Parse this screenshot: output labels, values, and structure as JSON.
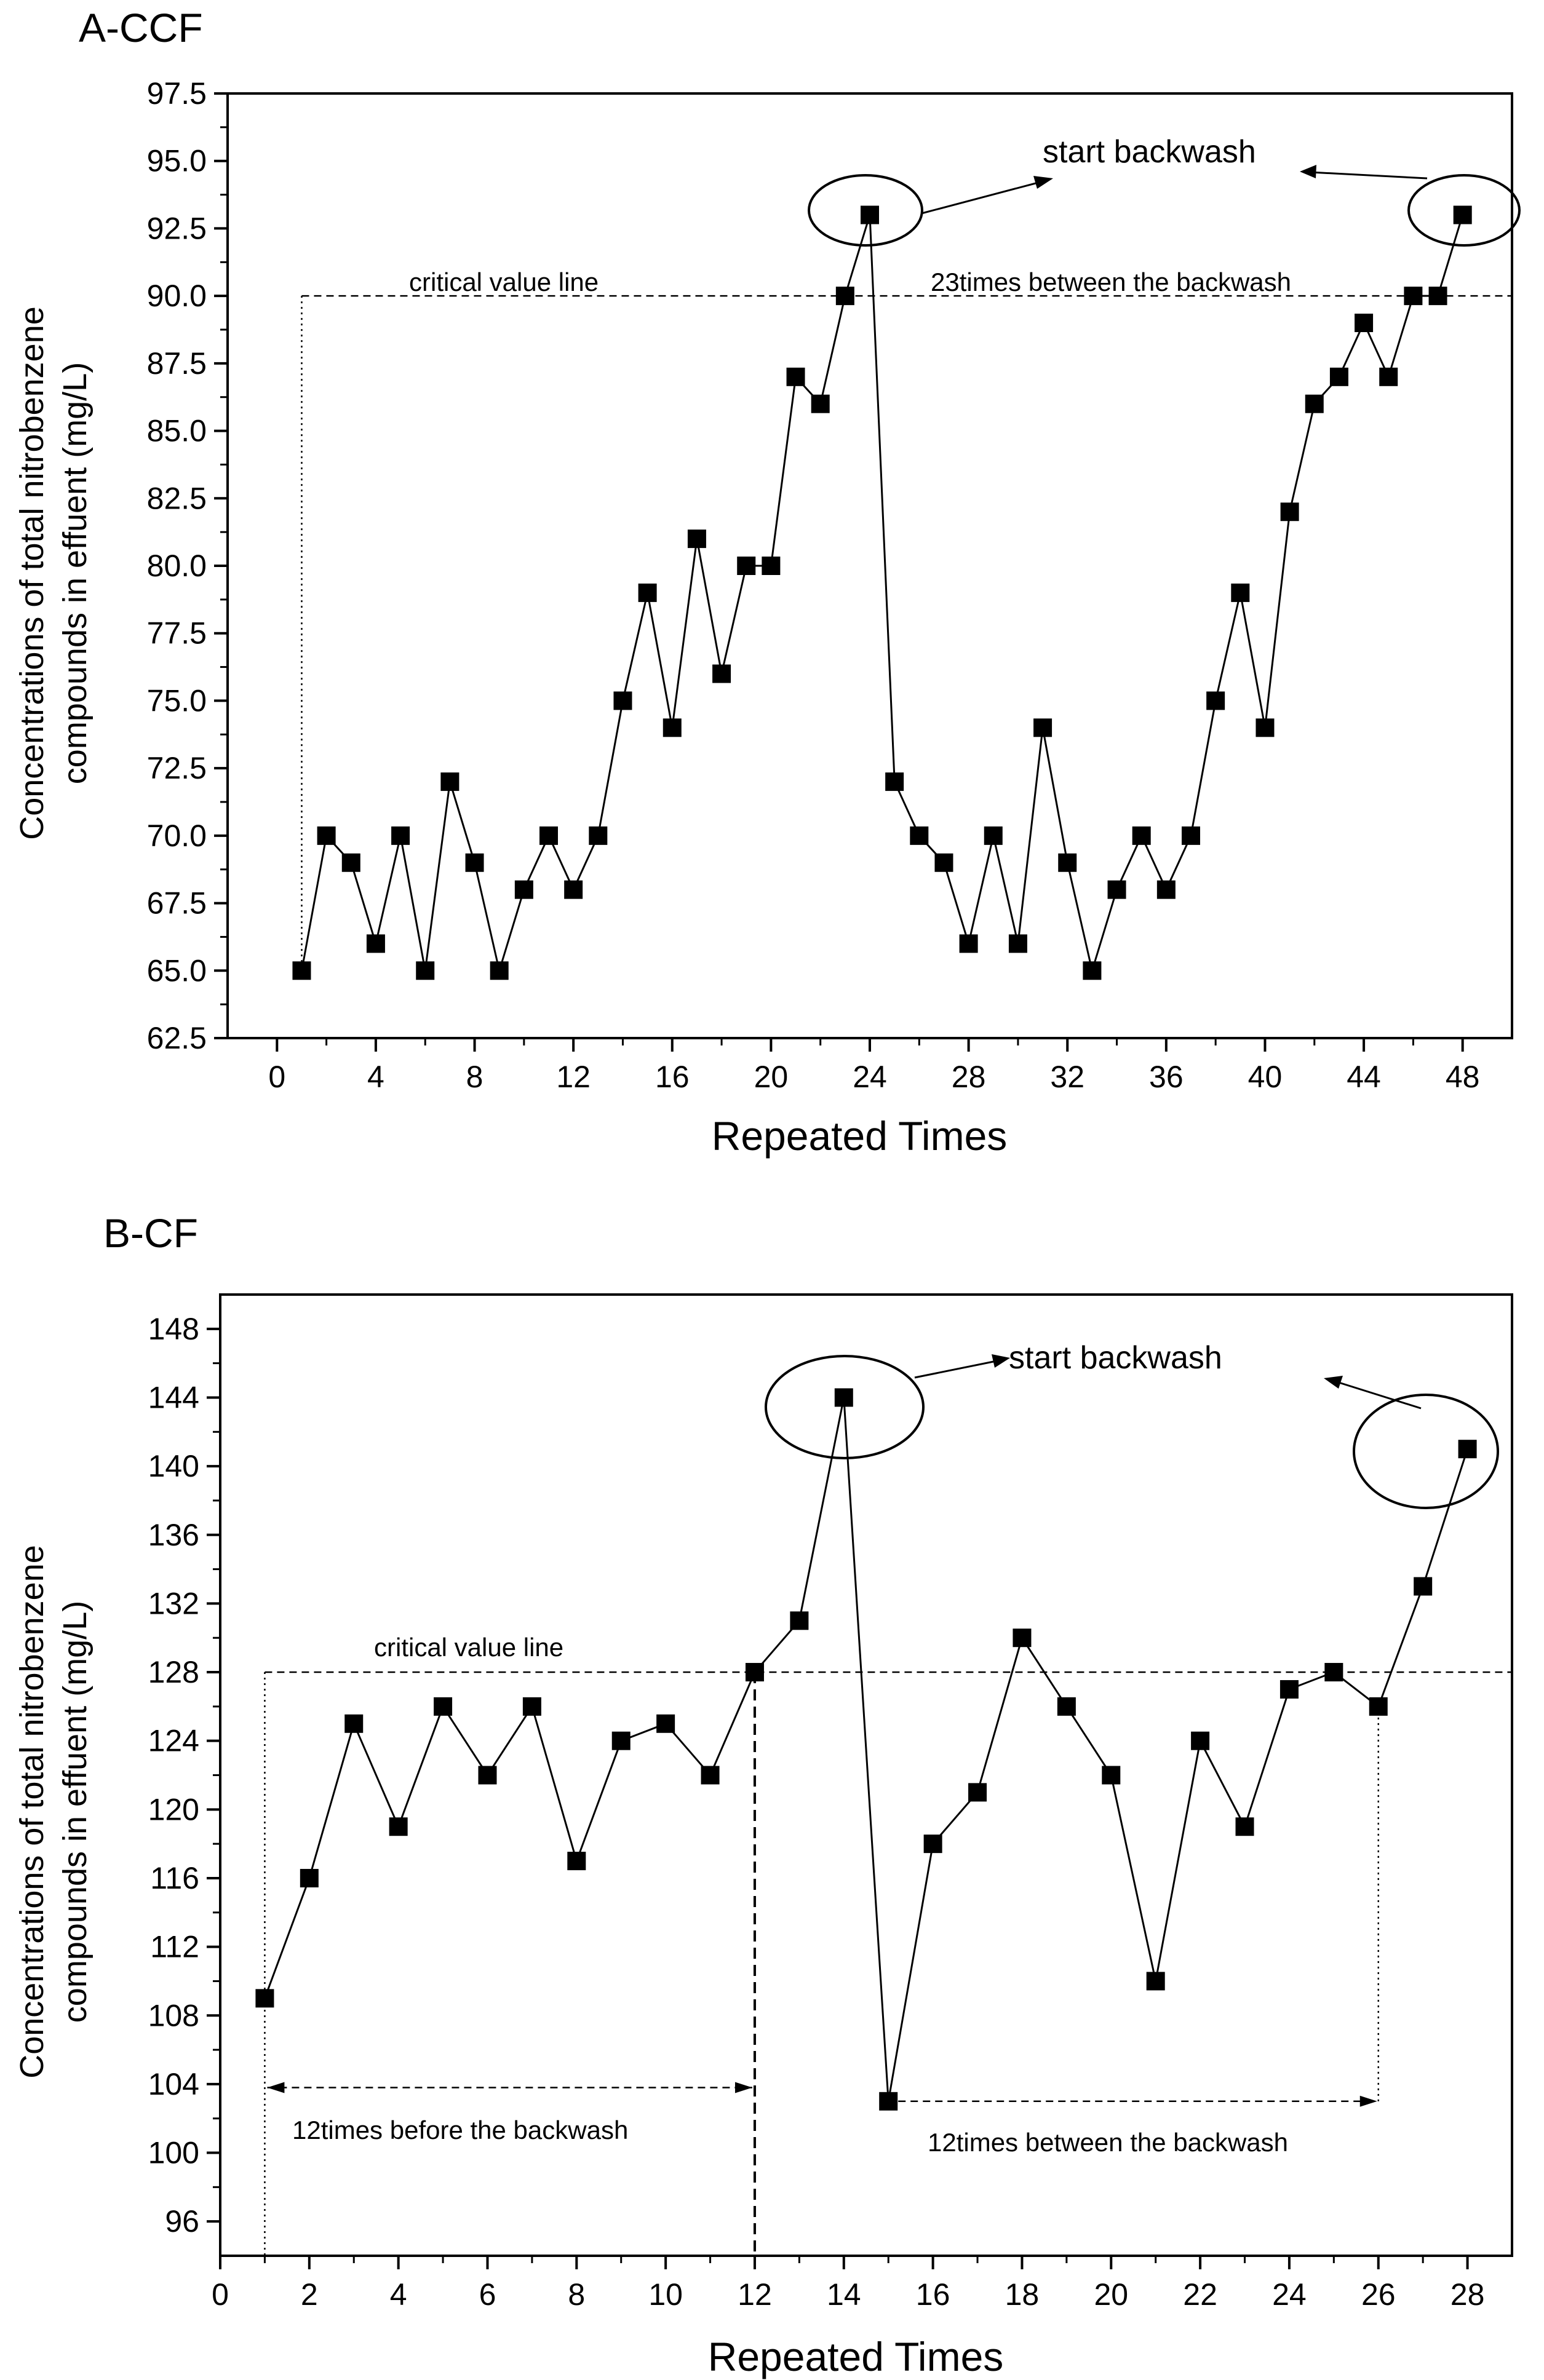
{
  "chart_data": [
    {
      "panel": "A-CCF",
      "type": "line",
      "title": "A-CCF",
      "xlabel": "Repeated Times",
      "ylabel_line1": "Concentrations of total nitrobenzene",
      "ylabel_line2": "compounds in effuent (mg/L)",
      "xlim": [
        -2,
        50
      ],
      "ylim": [
        62.5,
        97.5
      ],
      "xticks": [
        0,
        4,
        8,
        12,
        16,
        20,
        24,
        28,
        32,
        36,
        40,
        44,
        48
      ],
      "yticks": [
        62.5,
        65.0,
        67.5,
        70.0,
        72.5,
        75.0,
        77.5,
        80.0,
        82.5,
        85.0,
        87.5,
        90.0,
        92.5,
        95.0,
        97.5
      ],
      "ytick_labels": [
        "62.5",
        "65.0",
        "67.5",
        "70.0",
        "72.5",
        "75.0",
        "77.5",
        "80.0",
        "82.5",
        "85.0",
        "87.5",
        "90.0",
        "92.5",
        "95.0",
        "97.5"
      ],
      "x": [
        1,
        2,
        3,
        4,
        5,
        6,
        7,
        8,
        9,
        10,
        11,
        12,
        13,
        14,
        15,
        16,
        17,
        18,
        19,
        20,
        21,
        22,
        23,
        24,
        25,
        26,
        27,
        28,
        29,
        30,
        31,
        32,
        33,
        34,
        35,
        36,
        37,
        38,
        39,
        40,
        41,
        42,
        43,
        44,
        45,
        46,
        47,
        48
      ],
      "values": [
        65,
        70,
        69,
        66,
        70,
        65,
        72,
        69,
        65,
        68,
        70,
        68,
        70,
        75,
        79,
        74,
        81,
        76,
        80,
        80,
        87,
        86,
        90,
        93,
        72,
        70,
        69,
        66,
        70,
        66,
        74,
        69,
        65,
        68,
        70,
        68,
        70,
        75,
        79,
        74,
        82,
        86,
        87,
        89,
        87,
        90,
        90,
        93
      ],
      "critical_value": 90.0,
      "critical_label": "critical  value line",
      "interval_label": "23times between the backwash",
      "backwash_label": "start backwash",
      "backwash_points": [
        24,
        48
      ]
    },
    {
      "panel": "B-CF",
      "type": "line",
      "title": "B-CF",
      "xlabel": "Repeated Times",
      "ylabel_line1": "Concentrations of total nitrobenzene",
      "ylabel_line2": "compounds in effuent (mg/L)",
      "xlim": [
        0,
        29
      ],
      "ylim": [
        94,
        150
      ],
      "xticks": [
        0,
        2,
        4,
        6,
        8,
        10,
        12,
        14,
        16,
        18,
        20,
        22,
        24,
        26,
        28
      ],
      "yticks": [
        96,
        100,
        104,
        108,
        112,
        116,
        120,
        124,
        128,
        132,
        136,
        140,
        144,
        148
      ],
      "ytick_labels": [
        "96",
        "100",
        "104",
        "108",
        "112",
        "116",
        "120",
        "124",
        "128",
        "132",
        "136",
        "140",
        "144",
        "148"
      ],
      "x": [
        1,
        2,
        3,
        4,
        5,
        6,
        7,
        8,
        9,
        10,
        11,
        12,
        13,
        14,
        15,
        16,
        17,
        18,
        19,
        20,
        21,
        22,
        23,
        24,
        25,
        26,
        27,
        28
      ],
      "values": [
        109,
        116,
        125,
        119,
        126,
        122,
        126,
        117,
        124,
        125,
        122,
        128,
        131,
        144,
        103,
        118,
        121,
        130,
        126,
        122,
        110,
        124,
        119,
        127,
        128,
        126,
        133,
        141
      ],
      "critical_value": 128,
      "critical_label": "critical  value line",
      "before_label": "12times before the backwash",
      "between_label": "12times between the backwash",
      "backwash_label": "start backwash",
      "backwash_points": [
        14,
        28
      ]
    }
  ]
}
